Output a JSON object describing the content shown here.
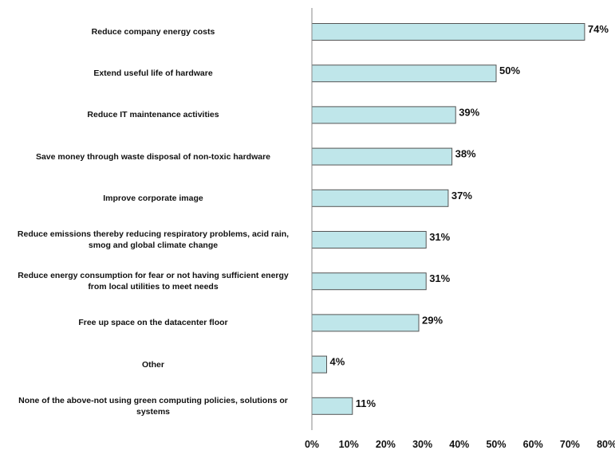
{
  "chart_data": {
    "type": "bar",
    "orientation": "horizontal",
    "categories": [
      [
        "Reduce company energy costs"
      ],
      [
        "Extend useful life of hardware"
      ],
      [
        "Reduce IT maintenance activities"
      ],
      [
        "Save money through waste disposal of non-toxic hardware"
      ],
      [
        "Improve corporate image"
      ],
      [
        "Reduce emissions thereby reducing respiratory problems, acid rain,",
        "smog and global climate change"
      ],
      [
        "Reduce energy consumption for fear or not having sufficient energy",
        "from local utilities to meet needs"
      ],
      [
        "Free up space on the datacenter floor"
      ],
      [
        "Other"
      ],
      [
        "None of the above-not using green computing policies, solutions or",
        "systems"
      ]
    ],
    "values": [
      74,
      50,
      39,
      38,
      37,
      31,
      31,
      29,
      4,
      11
    ],
    "data_labels": [
      "74%",
      "50%",
      "39%",
      "38%",
      "37%",
      "31%",
      "31%",
      "29%",
      "4%",
      "11%"
    ],
    "x_ticks": [
      "0%",
      "10%",
      "20%",
      "30%",
      "40%",
      "50%",
      "60%",
      "70%",
      "80%"
    ],
    "xlim": [
      0,
      80
    ],
    "bar_color": "#bfe6ea",
    "bar_border_color": "#555555",
    "grid": false,
    "title": "",
    "xlabel": "",
    "ylabel": ""
  }
}
